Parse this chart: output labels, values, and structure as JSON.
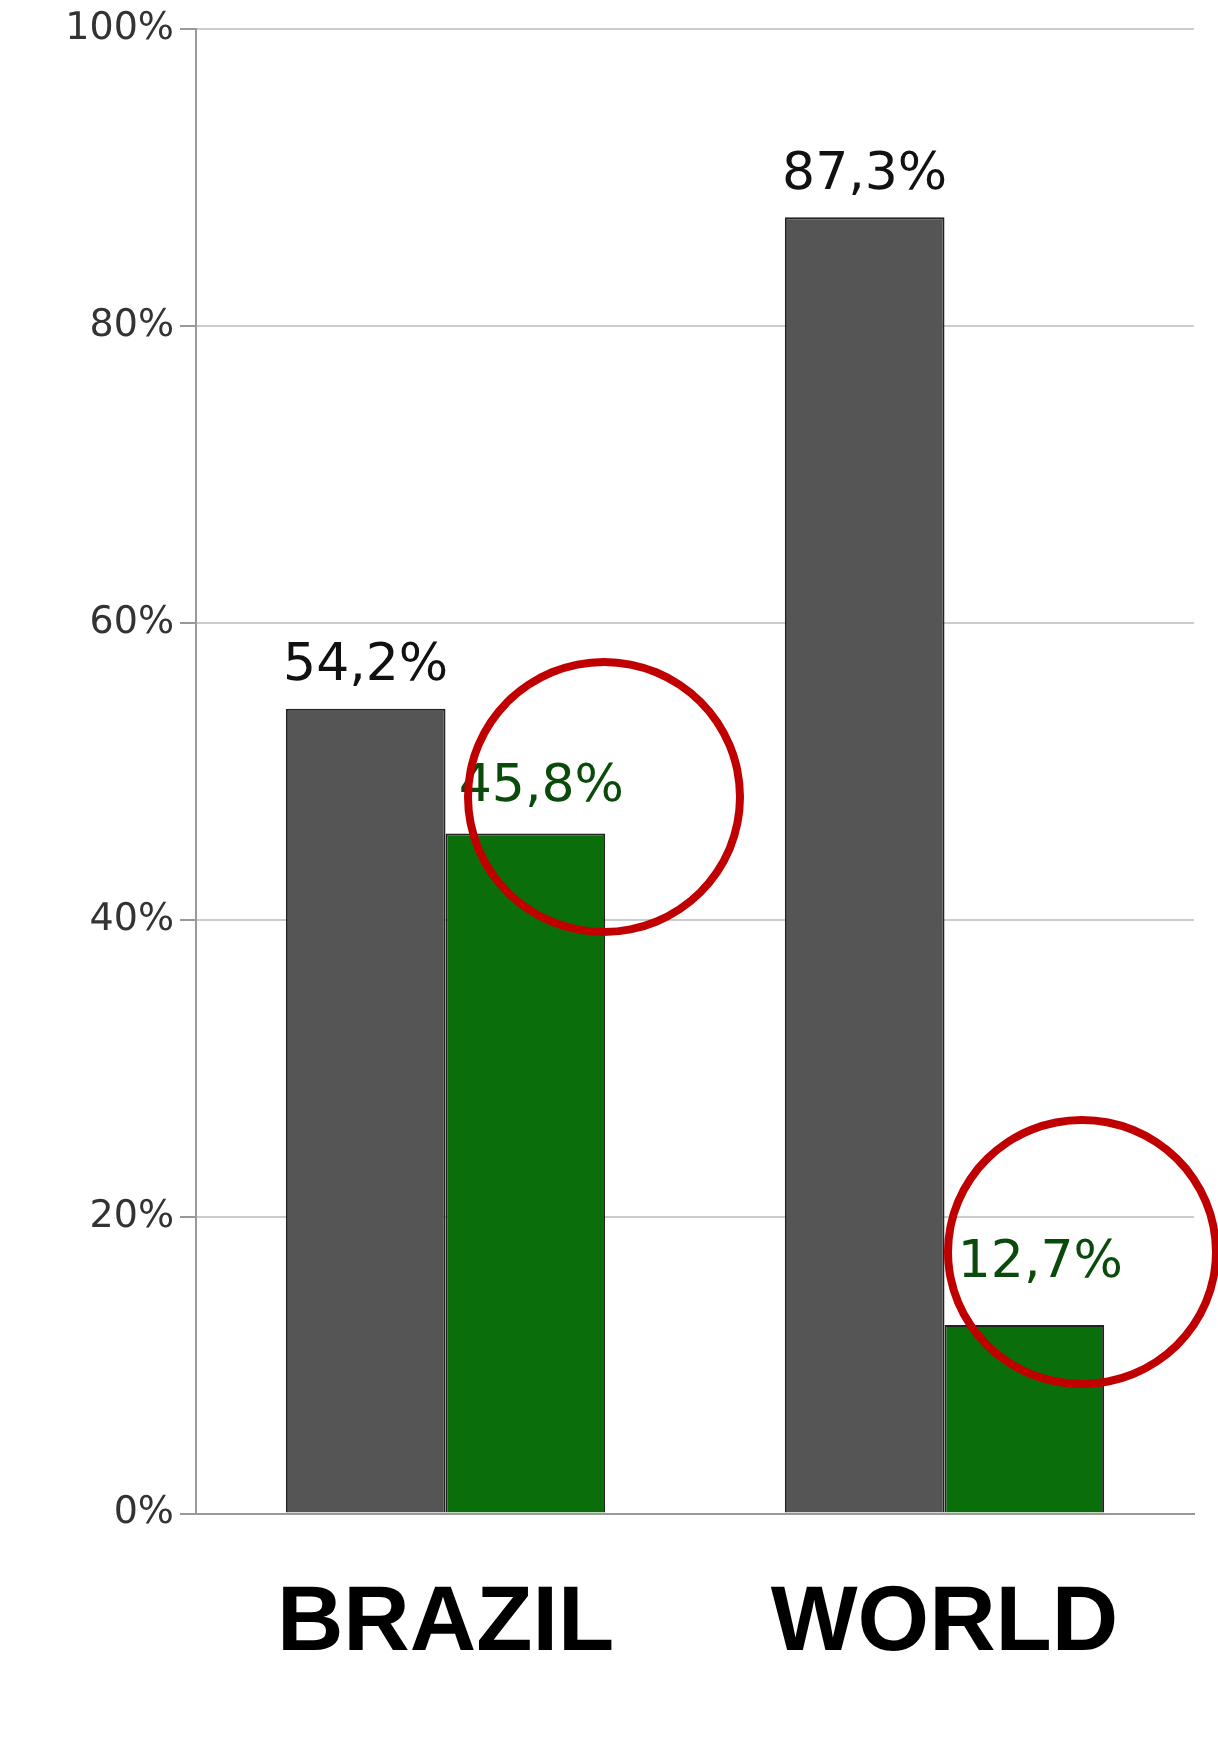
{
  "chart_data": {
    "type": "bar",
    "categories": [
      "BRAZIL",
      "WORLD"
    ],
    "series": [
      {
        "color": "#555555",
        "values": [
          54.2,
          87.3
        ],
        "value_labels": [
          "54,2%",
          "87,3%"
        ]
      },
      {
        "color": "#0a6e0a",
        "values": [
          45.8,
          12.7
        ],
        "value_labels": [
          "45,8%",
          "12,7%"
        ]
      }
    ],
    "ylim": [
      0,
      100
    ],
    "yticks": [
      {
        "value": 0,
        "label": "0%"
      },
      {
        "value": 20,
        "label": "20%"
      },
      {
        "value": 40,
        "label": "40%"
      },
      {
        "value": 60,
        "label": "60%"
      },
      {
        "value": 80,
        "label": "80%"
      },
      {
        "value": 100,
        "label": "100%"
      }
    ],
    "grid": "y"
  }
}
